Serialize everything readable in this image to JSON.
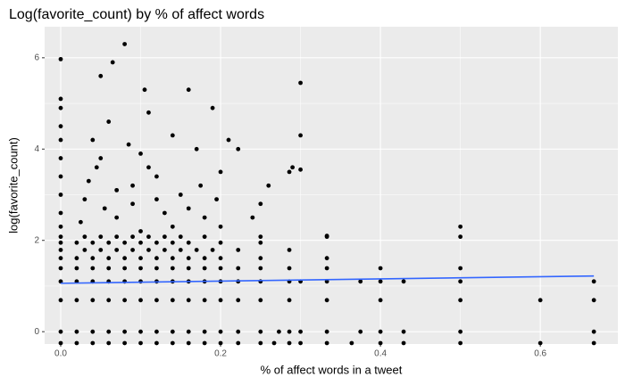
{
  "chart_data": {
    "type": "scatter",
    "title": "Log(favorite_count) by % of affect words",
    "x_label": "% of affect words in a tweet",
    "y_label": "log(favorite_count)",
    "xlim": [
      -0.0201,
      0.697
    ],
    "ylim": [
      -0.27,
      6.68
    ],
    "xticks": [
      {
        "value": 0,
        "label": "0.0"
      },
      0.2,
      0.4,
      0.6
    ],
    "yticks": [
      0,
      2,
      4,
      6
    ],
    "x_minor_grid": [
      0.1,
      0.3,
      0.5
    ],
    "y_minor_grid": [
      1,
      3,
      5
    ],
    "grid": true,
    "color": "#000000",
    "x": [
      0,
      0.02,
      0.04,
      0.06,
      0.08,
      0.1,
      0.12,
      0.14,
      0.16,
      0.18,
      0.2,
      0.222,
      0.25,
      0.267,
      0.286,
      0.3,
      0.333,
      0.364,
      0.4,
      0.429,
      0.5,
      0.6,
      0.667,
      0,
      0.02,
      0.04,
      0.06,
      0.08,
      0.1,
      0.12,
      0.14,
      0.16,
      0.18,
      0.2,
      0.222,
      0.25,
      0.273,
      0.286,
      0.3,
      0.333,
      0.375,
      0.4,
      0.429,
      0.5,
      0.667,
      0,
      0.02,
      0.04,
      0.06,
      0.08,
      0.1,
      0.12,
      0.14,
      0.16,
      0.18,
      0.2,
      0.222,
      0.25,
      0.286,
      0.333,
      0.4,
      0.5,
      0.6,
      0.667,
      0,
      0.02,
      0.04,
      0.06,
      0.08,
      0.1,
      0.12,
      0.14,
      0.16,
      0.18,
      0.2,
      0.222,
      0.25,
      0.286,
      0.3,
      0.333,
      0.375,
      0.4,
      0.429,
      0.5,
      0.667,
      0,
      0.02,
      0.04,
      0.06,
      0.08,
      0.1,
      0.12,
      0.14,
      0.16,
      0.18,
      0.2,
      0.222,
      0.25,
      0.286,
      0.333,
      0.4,
      0.5,
      0,
      0.02,
      0.04,
      0.06,
      0.08,
      0.1,
      0.12,
      0.14,
      0.16,
      0.18,
      0.2,
      0.25,
      0.333,
      0,
      0.03,
      0.05,
      0.07,
      0.09,
      0.11,
      0.13,
      0.15,
      0.17,
      0.19,
      0.222,
      0.286,
      0,
      0.02,
      0.04,
      0.06,
      0.08,
      0.1,
      0.12,
      0.14,
      0.16,
      0.2,
      0.25,
      0,
      0.03,
      0.05,
      0.07,
      0.09,
      0.11,
      0.13,
      0.15,
      0.18,
      0.25,
      0.333,
      0.5,
      0,
      0,
      0,
      0,
      0,
      0,
      0,
      0,
      0,
      0,
      0.025,
      0.03,
      0.035,
      0.04,
      0.045,
      0.05,
      0.055,
      0.06,
      0.065,
      0.07,
      0.08,
      0.085,
      0.09,
      0.1,
      0.105,
      0.11,
      0.12,
      0.13,
      0.14,
      0.15,
      0.16,
      0.17,
      0.18,
      0.19,
      0.2,
      0.21,
      0.222,
      0.25,
      0.286,
      0.3,
      0.3,
      0.3,
      0.333,
      0.5,
      0.14,
      0.07,
      0.1,
      0.12,
      0.16,
      0.2,
      0.24,
      0.26,
      0.29,
      0.05,
      0.09,
      0.11,
      0.175,
      0.195
    ],
    "values": [
      -0.25,
      -0.25,
      -0.25,
      -0.25,
      -0.25,
      -0.25,
      -0.25,
      -0.25,
      -0.25,
      -0.25,
      -0.25,
      -0.25,
      -0.25,
      -0.25,
      -0.25,
      -0.25,
      -0.25,
      -0.25,
      -0.25,
      -0.25,
      -0.25,
      -0.25,
      -0.25,
      0,
      0,
      0,
      0,
      0,
      0,
      0,
      0,
      0,
      0,
      0,
      0,
      0,
      0,
      0,
      0,
      0,
      0,
      0,
      0,
      0,
      0,
      0.69,
      0.69,
      0.69,
      0.69,
      0.69,
      0.69,
      0.69,
      0.69,
      0.69,
      0.69,
      0.69,
      0.69,
      0.69,
      0.69,
      0.69,
      0.69,
      0.69,
      0.69,
      0.69,
      1.1,
      1.1,
      1.1,
      1.1,
      1.1,
      1.1,
      1.1,
      1.1,
      1.1,
      1.1,
      1.1,
      1.1,
      1.1,
      1.1,
      1.1,
      1.1,
      1.1,
      1.1,
      1.1,
      1.1,
      1.1,
      1.39,
      1.39,
      1.39,
      1.39,
      1.39,
      1.39,
      1.39,
      1.39,
      1.39,
      1.39,
      1.39,
      1.39,
      1.39,
      1.39,
      1.39,
      1.39,
      1.39,
      1.61,
      1.61,
      1.61,
      1.61,
      1.61,
      1.61,
      1.61,
      1.61,
      1.61,
      1.61,
      1.61,
      1.61,
      1.61,
      1.79,
      1.79,
      1.79,
      1.79,
      1.79,
      1.79,
      1.79,
      1.79,
      1.79,
      1.79,
      1.79,
      1.79,
      1.95,
      1.95,
      1.95,
      1.95,
      1.95,
      1.95,
      1.95,
      1.95,
      1.95,
      1.95,
      1.95,
      2.08,
      2.08,
      2.08,
      2.08,
      2.08,
      2.08,
      2.08,
      2.08,
      2.08,
      2.08,
      2.08,
      2.08,
      2.3,
      2.6,
      3.0,
      3.4,
      3.8,
      4.2,
      4.5,
      4.9,
      5.1,
      5.97,
      2.4,
      2.9,
      3.3,
      4.2,
      3.6,
      5.6,
      2.7,
      4.6,
      5.9,
      3.1,
      6.3,
      4.1,
      2.8,
      3.9,
      5.3,
      4.8,
      3.4,
      2.6,
      4.3,
      3.0,
      5.3,
      4.0,
      2.5,
      4.9,
      3.5,
      4.2,
      4.0,
      2.8,
      3.5,
      5.45,
      4.3,
      3.55,
      2.1,
      2.3,
      2.3,
      2.5,
      2.2,
      2.9,
      2.7,
      2.3,
      2.5,
      3.2,
      3.6,
      3.8,
      3.2,
      3.6,
      3.2,
      2.9
    ],
    "trend": {
      "x": [
        0,
        0.667
      ],
      "values": [
        1.06,
        1.22
      ],
      "color": "#3366FF"
    }
  }
}
